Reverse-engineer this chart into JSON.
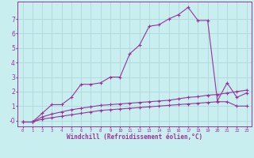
{
  "xlabel": "Windchill (Refroidissement éolien,°C)",
  "bg_color": "#c8eef0",
  "grid_color": "#b0d8da",
  "line_color": "#993399",
  "x_ticks": [
    0,
    1,
    2,
    3,
    4,
    5,
    6,
    7,
    8,
    9,
    10,
    11,
    12,
    13,
    14,
    15,
    16,
    17,
    18,
    19,
    20,
    21,
    22,
    23
  ],
  "y_ticks": [
    0,
    1,
    2,
    3,
    4,
    5,
    6,
    7
  ],
  "ylim": [
    -0.4,
    8.2
  ],
  "xlim": [
    -0.5,
    23.5
  ],
  "series1_x": [
    0,
    1,
    2,
    3,
    4,
    5,
    6,
    7,
    8,
    9,
    10,
    11,
    12,
    13,
    14,
    15,
    16,
    17,
    18,
    19,
    20,
    21,
    22,
    23
  ],
  "series1_y": [
    -0.1,
    -0.1,
    0.5,
    1.1,
    1.1,
    1.6,
    2.5,
    2.5,
    2.6,
    3.0,
    3.0,
    4.6,
    5.2,
    6.5,
    6.6,
    7.0,
    7.3,
    7.8,
    6.9,
    6.9,
    1.35,
    2.6,
    1.6,
    1.9
  ],
  "series2_x": [
    0,
    1,
    2,
    3,
    4,
    5,
    6,
    7,
    8,
    9,
    10,
    11,
    12,
    13,
    14,
    15,
    16,
    17,
    18,
    19,
    20,
    21,
    22,
    23
  ],
  "series2_y": [
    -0.1,
    -0.1,
    0.25,
    0.45,
    0.6,
    0.75,
    0.85,
    0.95,
    1.05,
    1.1,
    1.15,
    1.2,
    1.25,
    1.3,
    1.35,
    1.4,
    1.5,
    1.6,
    1.65,
    1.75,
    1.8,
    1.9,
    2.0,
    2.1
  ],
  "series3_x": [
    0,
    1,
    2,
    3,
    4,
    5,
    6,
    7,
    8,
    9,
    10,
    11,
    12,
    13,
    14,
    15,
    16,
    17,
    18,
    19,
    20,
    21,
    22,
    23
  ],
  "series3_y": [
    -0.1,
    -0.1,
    0.1,
    0.2,
    0.3,
    0.4,
    0.5,
    0.6,
    0.7,
    0.75,
    0.8,
    0.85,
    0.9,
    0.95,
    1.0,
    1.05,
    1.1,
    1.15,
    1.2,
    1.25,
    1.3,
    1.3,
    1.0,
    1.0
  ]
}
